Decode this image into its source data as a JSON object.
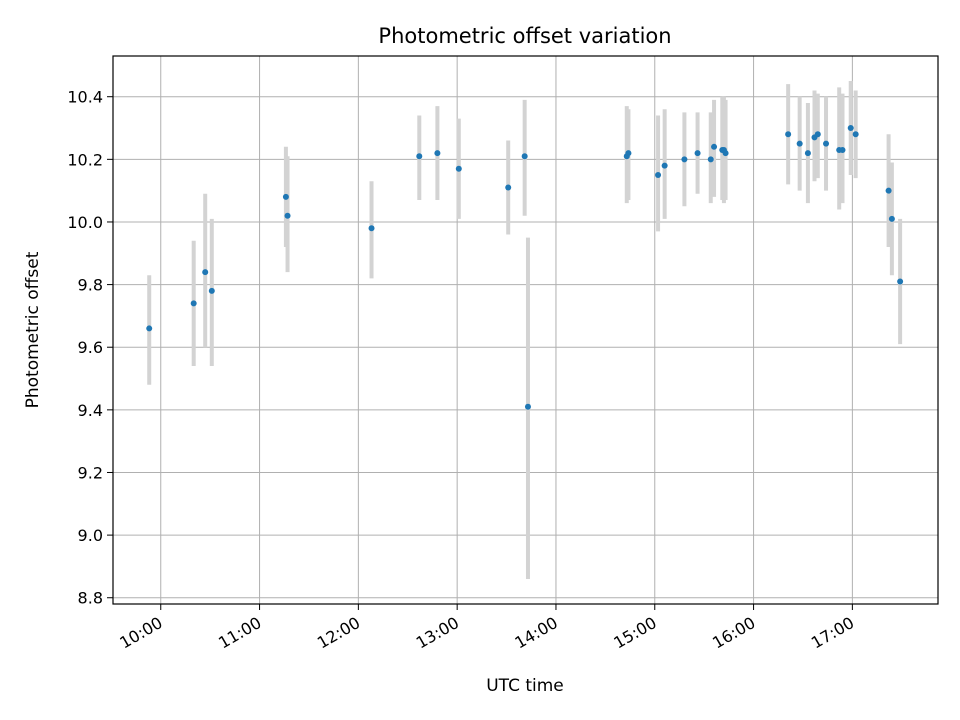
{
  "chart_data": {
    "type": "scatter",
    "title": "Photometric offset variation",
    "xlabel": "UTC time",
    "ylabel": "Photometric offset",
    "x_unit": "UTC time (HH:MM)",
    "xlim": [
      "09:31",
      "17:52"
    ],
    "ylim": [
      8.78,
      10.53
    ],
    "x_ticks": [
      "10:00",
      "11:00",
      "12:00",
      "13:00",
      "14:00",
      "15:00",
      "16:00",
      "17:00"
    ],
    "y_ticks": [
      "8.8",
      "9.0",
      "9.2",
      "9.4",
      "9.6",
      "9.8",
      "10.0",
      "10.2",
      "10.4"
    ],
    "grid": true,
    "point_color": "#1f77b4",
    "errorbar_color": "#d3d3d3",
    "points": [
      {
        "t": "09:53",
        "y": 9.66,
        "lo": 9.48,
        "hi": 9.83
      },
      {
        "t": "10:20",
        "y": 9.74,
        "lo": 9.54,
        "hi": 9.94
      },
      {
        "t": "10:27",
        "y": 9.84,
        "lo": 9.6,
        "hi": 10.09
      },
      {
        "t": "10:31",
        "y": 9.78,
        "lo": 9.54,
        "hi": 10.01
      },
      {
        "t": "11:16",
        "y": 10.08,
        "lo": 9.92,
        "hi": 10.24
      },
      {
        "t": "11:17",
        "y": 10.02,
        "lo": 9.84,
        "hi": 10.21
      },
      {
        "t": "12:08",
        "y": 9.98,
        "lo": 9.82,
        "hi": 10.13
      },
      {
        "t": "12:37",
        "y": 10.21,
        "lo": 10.07,
        "hi": 10.34
      },
      {
        "t": "12:48",
        "y": 10.22,
        "lo": 10.07,
        "hi": 10.37
      },
      {
        "t": "13:01",
        "y": 10.17,
        "lo": 10.01,
        "hi": 10.33
      },
      {
        "t": "13:31",
        "y": 10.11,
        "lo": 9.96,
        "hi": 10.26
      },
      {
        "t": "13:41",
        "y": 10.21,
        "lo": 10.02,
        "hi": 10.39
      },
      {
        "t": "13:43",
        "y": 9.41,
        "lo": 8.86,
        "hi": 9.95
      },
      {
        "t": "14:43",
        "y": 10.21,
        "lo": 10.06,
        "hi": 10.37
      },
      {
        "t": "14:44",
        "y": 10.22,
        "lo": 10.07,
        "hi": 10.36
      },
      {
        "t": "15:02",
        "y": 10.15,
        "lo": 9.97,
        "hi": 10.34
      },
      {
        "t": "15:06",
        "y": 10.18,
        "lo": 10.01,
        "hi": 10.36
      },
      {
        "t": "15:18",
        "y": 10.2,
        "lo": 10.05,
        "hi": 10.35
      },
      {
        "t": "15:26",
        "y": 10.22,
        "lo": 10.09,
        "hi": 10.35
      },
      {
        "t": "15:34",
        "y": 10.2,
        "lo": 10.06,
        "hi": 10.35
      },
      {
        "t": "15:36",
        "y": 10.24,
        "lo": 10.08,
        "hi": 10.39
      },
      {
        "t": "15:41",
        "y": 10.23,
        "lo": 10.07,
        "hi": 10.4
      },
      {
        "t": "15:42",
        "y": 10.23,
        "lo": 10.06,
        "hi": 10.4
      },
      {
        "t": "15:43",
        "y": 10.22,
        "lo": 10.07,
        "hi": 10.39
      },
      {
        "t": "16:21",
        "y": 10.28,
        "lo": 10.12,
        "hi": 10.44
      },
      {
        "t": "16:28",
        "y": 10.25,
        "lo": 10.1,
        "hi": 10.4
      },
      {
        "t": "16:33",
        "y": 10.22,
        "lo": 10.06,
        "hi": 10.38
      },
      {
        "t": "16:37",
        "y": 10.27,
        "lo": 10.13,
        "hi": 10.42
      },
      {
        "t": "16:39",
        "y": 10.28,
        "lo": 10.14,
        "hi": 10.41
      },
      {
        "t": "16:44",
        "y": 10.25,
        "lo": 10.1,
        "hi": 10.4
      },
      {
        "t": "16:52",
        "y": 10.23,
        "lo": 10.04,
        "hi": 10.43
      },
      {
        "t": "16:54",
        "y": 10.23,
        "lo": 10.06,
        "hi": 10.41
      },
      {
        "t": "16:59",
        "y": 10.3,
        "lo": 10.15,
        "hi": 10.45
      },
      {
        "t": "17:02",
        "y": 10.28,
        "lo": 10.14,
        "hi": 10.42
      },
      {
        "t": "17:22",
        "y": 10.1,
        "lo": 9.92,
        "hi": 10.28
      },
      {
        "t": "17:24",
        "y": 10.01,
        "lo": 9.83,
        "hi": 10.19
      },
      {
        "t": "17:29",
        "y": 9.81,
        "lo": 9.61,
        "hi": 10.01
      }
    ]
  }
}
